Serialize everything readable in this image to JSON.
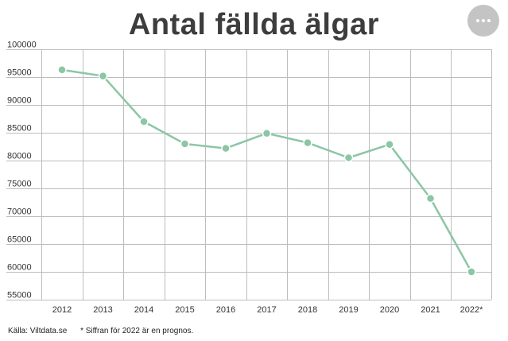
{
  "header": {
    "title": "Antal fällda älgar"
  },
  "menu": {
    "icon": "more-horizontal-icon"
  },
  "footer": {
    "source": "Källa: Viltdata.se",
    "note": "* Siffran för 2022 är en prognos."
  },
  "chart_data": {
    "type": "line",
    "title": "Antal fällda älgar",
    "categories": [
      "2012",
      "2013",
      "2014",
      "2015",
      "2016",
      "2017",
      "2018",
      "2019",
      "2020",
      "2021",
      "2022*"
    ],
    "series": [
      {
        "values": [
          96300,
          95200,
          87000,
          83000,
          82200,
          84900,
          83200,
          80500,
          82900,
          73200,
          60000
        ]
      }
    ],
    "ylim": [
      55000,
      100000
    ],
    "yticks": [
      55000,
      60000,
      65000,
      70000,
      75000,
      80000,
      85000,
      90000,
      95000,
      100000
    ],
    "grid": true,
    "line_color": "#8cc6a5",
    "grid_color": "#bdbdbd"
  }
}
